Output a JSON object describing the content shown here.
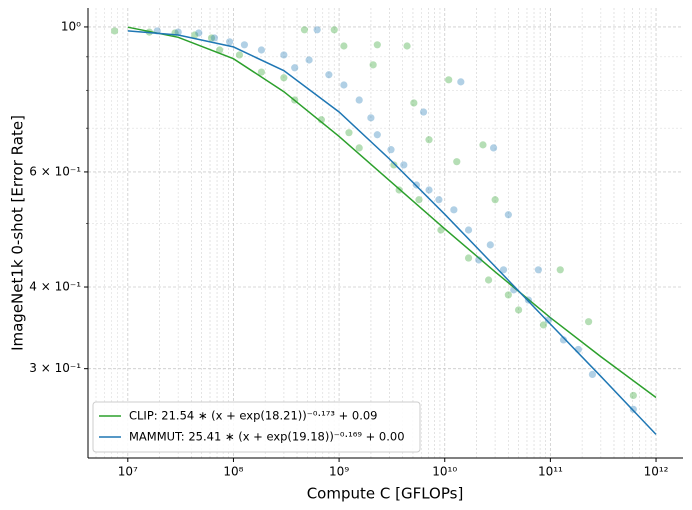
{
  "chart_data": {
    "type": "scatter",
    "xlabel": "Compute C [GFLOPs]",
    "ylabel": "ImageNet1k 0-shot [Error Rate]",
    "xscale": "log",
    "yscale": "log",
    "grid": true,
    "legend": "lower left",
    "xlim": [
      4200000,
      1800000000000
    ],
    "ylim": [
      0.219,
      1.069
    ],
    "xticks": [
      {
        "value": 10000000,
        "label": "10⁷"
      },
      {
        "value": 100000000,
        "label": "10⁸"
      },
      {
        "value": 1000000000,
        "label": "10⁹"
      },
      {
        "value": 10000000000,
        "label": "10¹⁰"
      },
      {
        "value": 100000000000,
        "label": "10¹¹"
      },
      {
        "value": 1000000000000,
        "label": "10¹²"
      }
    ],
    "yticks": [
      {
        "value": 1,
        "label": "10⁰"
      },
      {
        "value": 0.6,
        "label": "6 × 10⁻¹"
      },
      {
        "value": 0.4,
        "label": "4 × 10⁻¹"
      },
      {
        "value": 0.3,
        "label": "3 × 10⁻¹"
      }
    ],
    "yminor": [
      0.5,
      0.7,
      0.8,
      0.9
    ],
    "series": [
      {
        "name": "CLIP: 21.54 ∗ (x + exp(18.21))⁻⁰·¹⁷³ + 0.09",
        "color": "#2ca02c",
        "x": [
          7500000,
          16000000,
          28000000,
          43000000,
          62000000,
          74000000,
          114000000,
          184000000,
          300000000,
          380000000,
          470000000,
          680000000,
          900000000,
          1110000000,
          1240000000,
          1550000000,
          2300000000,
          3300000000,
          3700000000,
          4400000000,
          5100000000,
          5700000000,
          9200000000,
          10900000000,
          13000000000,
          16800000000,
          26000000000,
          30000000000,
          40000000000,
          50000000000,
          86000000000,
          124000000000,
          230000000000,
          610000000000,
          2100000000,
          7100000000,
          23000000000
        ],
        "values": [
          0.986,
          0.982,
          0.979,
          0.972,
          0.962,
          0.922,
          0.906,
          0.853,
          0.836,
          0.773,
          0.99,
          0.721,
          0.99,
          0.935,
          0.689,
          0.653,
          0.939,
          0.615,
          0.563,
          0.935,
          0.765,
          0.544,
          0.489,
          0.83,
          0.622,
          0.443,
          0.41,
          0.544,
          0.389,
          0.369,
          0.35,
          0.425,
          0.354,
          0.273,
          0.875,
          0.672,
          0.66
        ],
        "fit_x": [
          10000000,
          30000000,
          100000000,
          300000000,
          1000000000,
          3000000000,
          10000000000,
          30000000000,
          100000000000,
          300000000000,
          1000000000000
        ],
        "fit_values": [
          0.999,
          0.964,
          0.894,
          0.796,
          0.68,
          0.582,
          0.491,
          0.422,
          0.359,
          0.313,
          0.271
        ]
      },
      {
        "name": "MAMMUT: 25.41 ∗ (x + exp(19.18))⁻⁰·¹⁶⁹ + 0.00",
        "color": "#1f77b4",
        "x": [
          19000000,
          30000000,
          47000000,
          66000000,
          92000000,
          127000000,
          184000000,
          300000000,
          380000000,
          520000000,
          620000000,
          800000000,
          1110000000,
          1550000000,
          2000000000,
          2300000000,
          3100000000,
          4100000000,
          5400000000,
          6300000000,
          7100000000,
          8800000000,
          12200000000,
          14200000000,
          16800000000,
          21000000000,
          27000000000,
          36000000000,
          45000000000,
          62000000000,
          96000000000,
          133000000000,
          184000000000,
          250000000000,
          610000000000,
          29000000000,
          40000000000,
          77000000000
        ],
        "values": [
          0.986,
          0.982,
          0.979,
          0.962,
          0.949,
          0.939,
          0.922,
          0.906,
          0.866,
          0.89,
          0.99,
          0.845,
          0.815,
          0.773,
          0.726,
          0.684,
          0.649,
          0.615,
          0.573,
          0.741,
          0.563,
          0.544,
          0.525,
          0.824,
          0.489,
          0.44,
          0.464,
          0.425,
          0.396,
          0.382,
          0.356,
          0.332,
          0.321,
          0.294,
          0.26,
          0.653,
          0.516,
          0.425
        ],
        "fit_x": [
          10000000,
          30000000,
          100000000,
          300000000,
          1000000000,
          3000000000,
          10000000000,
          30000000000,
          100000000000,
          300000000000,
          1000000000000
        ],
        "fit_values": [
          0.986,
          0.972,
          0.932,
          0.857,
          0.741,
          0.628,
          0.517,
          0.43,
          0.351,
          0.292,
          0.238
        ]
      }
    ]
  }
}
